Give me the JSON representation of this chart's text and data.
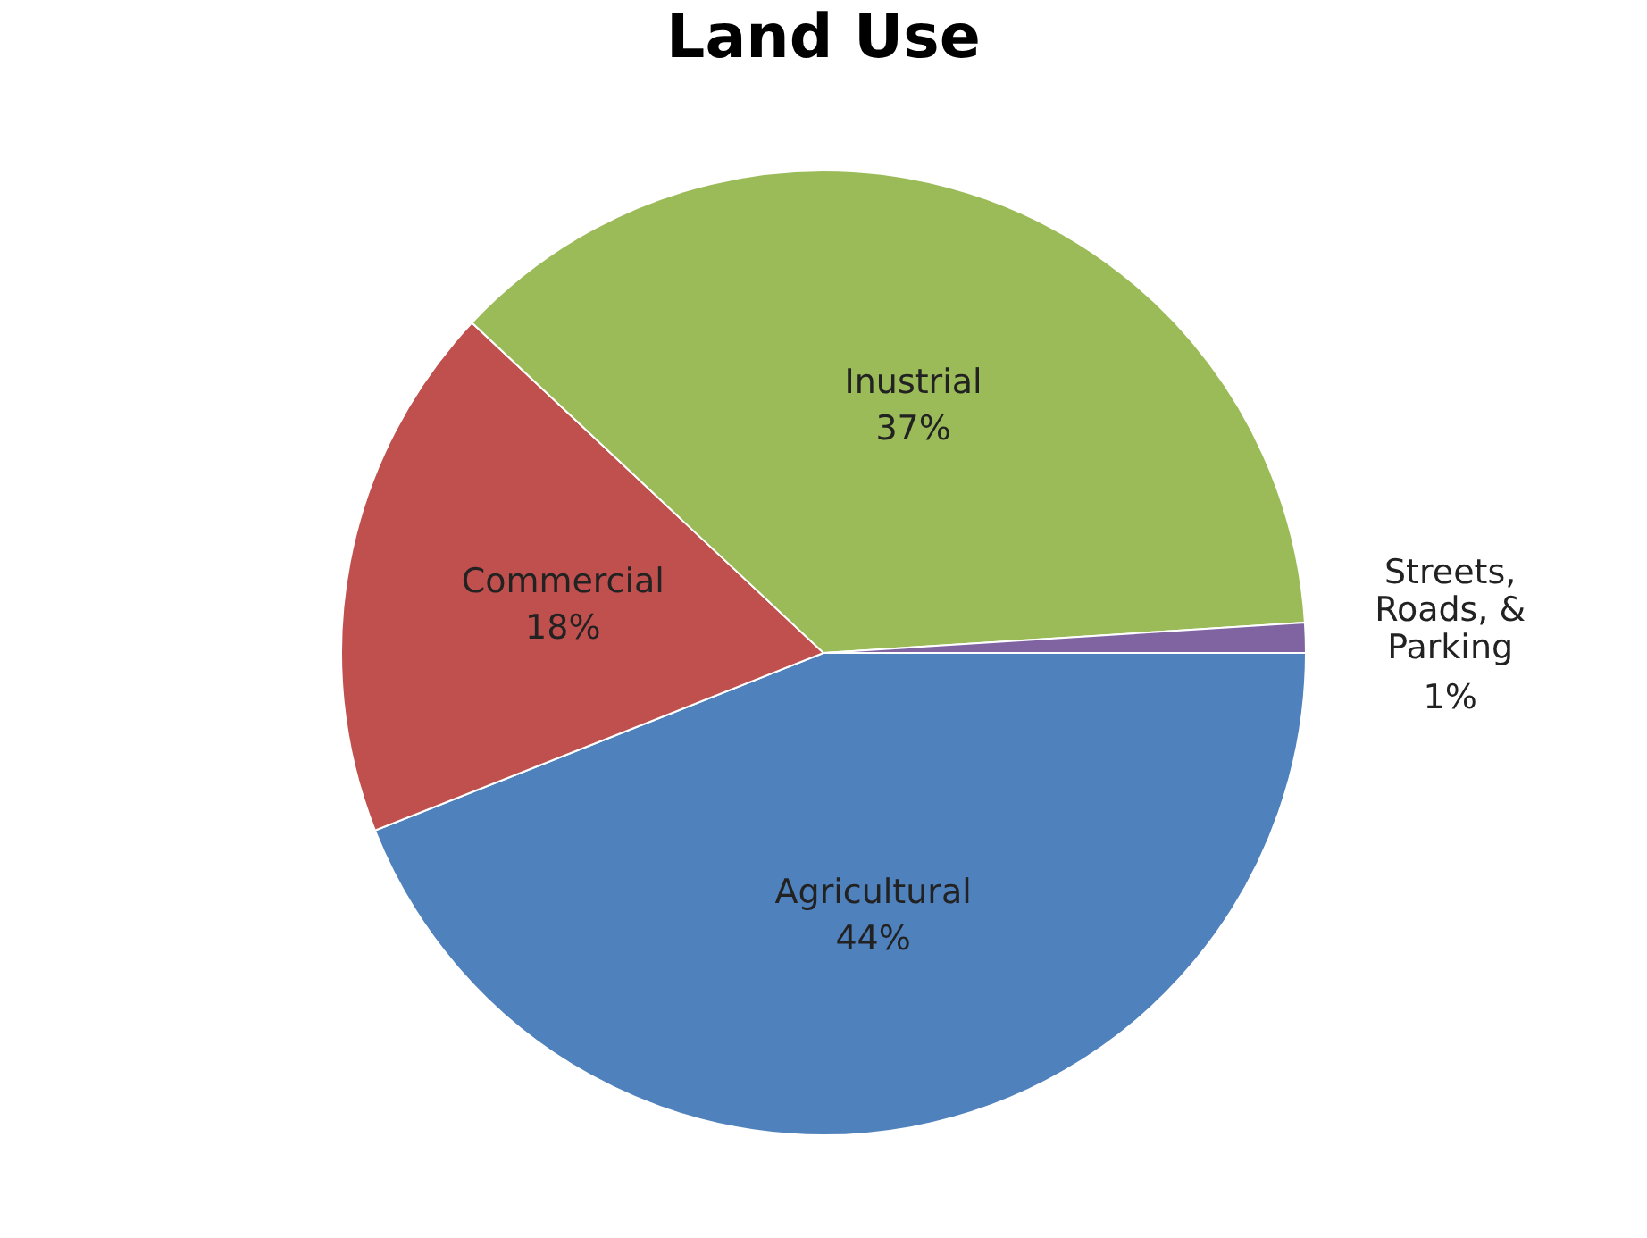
{
  "chart_data": {
    "type": "pie",
    "title": "Land Use",
    "categories": [
      "Agricultural",
      "Commercial",
      "Inustrial",
      "Streets,\nRoads, &\nParking"
    ],
    "values": [
      44,
      18,
      37,
      1
    ],
    "colors": [
      "#4f81bd",
      "#c0504d",
      "#9bbb59",
      "#8064a2"
    ],
    "value_labels": [
      "44%",
      "18%",
      "37%",
      "1%"
    ],
    "legend": false
  }
}
